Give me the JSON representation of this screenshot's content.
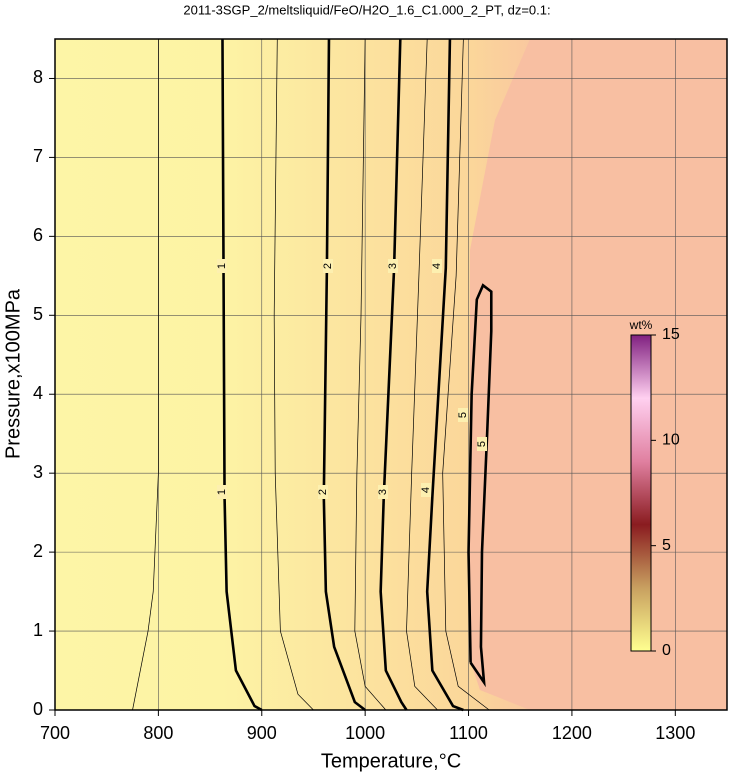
{
  "chart_data": {
    "type": "contour",
    "title": "2011-3SGP_2/meltsliquid/FeO/H2O_1.6_C1.000_2_PT, dz=0.1:",
    "x_label": "Temperature,°C",
    "y_label": "Pressure,x100MPa",
    "xlim": [
      700,
      1350
    ],
    "ylim": [
      0,
      8.5
    ],
    "xticks": [
      700,
      800,
      900,
      1000,
      1100,
      1200,
      1300
    ],
    "yticks": [
      0,
      1,
      2,
      3,
      4,
      5,
      6,
      7,
      8
    ],
    "grid": true,
    "contours": [
      {
        "level": 0.5,
        "bold": false,
        "x": [
          800,
          800,
          795,
          790,
          775
        ],
        "y": [
          8.5,
          3,
          1.5,
          1,
          0
        ]
      },
      {
        "level": 1,
        "bold": true,
        "x": [
          862,
          863,
          864,
          866,
          875,
          893,
          900
        ],
        "y": [
          8.5,
          5.6,
          2.7,
          1.5,
          0.5,
          0.05,
          0
        ]
      },
      {
        "level": 1.5,
        "bold": false,
        "x": [
          915,
          912,
          913,
          918,
          935,
          950
        ],
        "y": [
          8.5,
          5,
          3,
          1,
          0.2,
          0
        ]
      },
      {
        "level": 2,
        "bold": true,
        "x": [
          965,
          963,
          960,
          962,
          970,
          990,
          1000
        ],
        "y": [
          8.5,
          5.6,
          2.7,
          1.5,
          0.8,
          0.1,
          0
        ]
      },
      {
        "level": 2.5,
        "bold": false,
        "x": [
          1000,
          996,
          992,
          990,
          1000,
          1020
        ],
        "y": [
          8.5,
          5,
          3,
          1,
          0.3,
          0
        ]
      },
      {
        "level": 3,
        "bold": true,
        "x": [
          1034,
          1028,
          1018,
          1015,
          1020,
          1035,
          1040
        ],
        "y": [
          8.5,
          5.6,
          2.7,
          1.5,
          0.5,
          0.1,
          0
        ]
      },
      {
        "level": 3.5,
        "bold": false,
        "x": [
          1060,
          1052,
          1045,
          1040,
          1048,
          1070
        ],
        "y": [
          8.5,
          5.5,
          3,
          1,
          0.3,
          0
        ]
      },
      {
        "level": 4,
        "bold": true,
        "x": [
          1082,
          1078,
          1065,
          1060,
          1065,
          1085,
          1095
        ],
        "y": [
          8.5,
          5.6,
          2.7,
          1.5,
          0.5,
          0.05,
          0
        ]
      },
      {
        "level": 4.5,
        "bold": false,
        "x": [
          1095,
          1088,
          1075,
          1078,
          1090,
          1120
        ],
        "y": [
          8.5,
          5.5,
          3,
          1,
          0.3,
          0
        ]
      },
      {
        "level": 5,
        "bold": true,
        "x": [
          1102,
          1100,
          1103,
          1108,
          1114,
          1122,
          1122,
          1118,
          1113,
          1112,
          1115,
          1102
        ],
        "y": [
          0.6,
          2,
          4,
          5.2,
          5.38,
          5.3,
          4.8,
          3.5,
          2,
          0.8,
          0.35,
          0.6
        ]
      }
    ],
    "colorbar": {
      "label": "wt%",
      "lim": [
        0,
        15
      ],
      "ticks": [
        0,
        5,
        10,
        15
      ]
    }
  }
}
